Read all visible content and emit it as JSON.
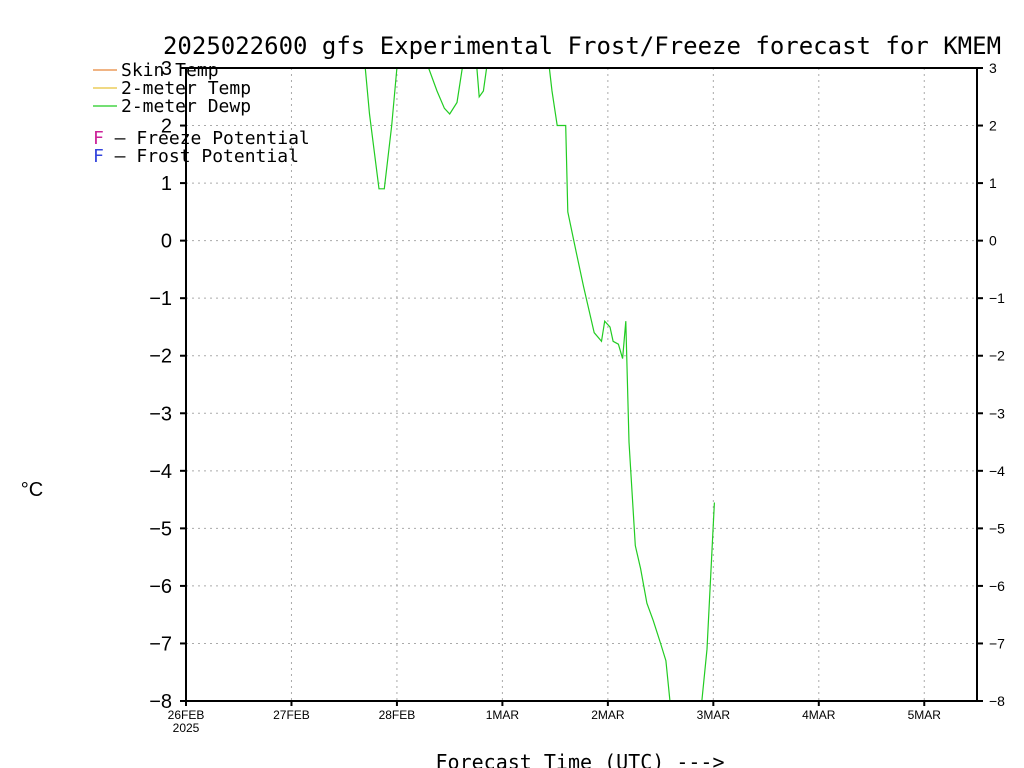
{
  "chart_data": {
    "type": "line",
    "title": "2025022600 gfs Experimental Frost/Freeze forecast for KMEM",
    "xlabel": "Forecast Time (UTC) --->",
    "ylabel": "°C",
    "ylim": [
      -8,
      3
    ],
    "xlim": [
      0,
      7.5
    ],
    "yticks": [
      3,
      2,
      1,
      0,
      -1,
      -2,
      -3,
      -4,
      -5,
      -6,
      -7,
      -8
    ],
    "yticks_right": [
      "3",
      "2",
      "1",
      "0",
      "−1",
      "−2",
      "−3",
      "−4",
      "−5",
      "−6",
      "−7",
      "−8"
    ],
    "yticks_left": [
      "3",
      "2",
      "1",
      "0",
      "−1",
      "−2",
      "−3",
      "−4",
      "−5",
      "−6",
      "−7",
      "−8"
    ],
    "xticks": [
      {
        "x": 0,
        "label": "26FEB",
        "sub": "2025"
      },
      {
        "x": 1,
        "label": "27FEB",
        "sub": ""
      },
      {
        "x": 2,
        "label": "28FEB",
        "sub": ""
      },
      {
        "x": 3,
        "label": "1MAR",
        "sub": ""
      },
      {
        "x": 4,
        "label": "2MAR",
        "sub": ""
      },
      {
        "x": 5,
        "label": "3MAR",
        "sub": ""
      },
      {
        "x": 6,
        "label": "4MAR",
        "sub": ""
      },
      {
        "x": 7,
        "label": "5MAR",
        "sub": ""
      }
    ],
    "grid": true,
    "legend": "top-left",
    "series": [
      {
        "name": "Skin Temp",
        "color": "#e8873a",
        "values": []
      },
      {
        "name": "2-meter Temp",
        "color": "#e8c23a",
        "values": []
      },
      {
        "name": "2-meter Dewp",
        "color": "#22cc22",
        "segments": [
          [
            [
              1.69,
              3.2
            ],
            [
              1.74,
              2.2
            ],
            [
              1.83,
              0.9
            ],
            [
              1.88,
              0.9
            ],
            [
              1.95,
              2.0
            ],
            [
              2.0,
              3.0
            ],
            [
              2.07,
              3.3
            ]
          ],
          [
            [
              2.2,
              3.2
            ],
            [
              2.3,
              3.0
            ],
            [
              2.38,
              2.6
            ],
            [
              2.45,
              2.3
            ],
            [
              2.5,
              2.2
            ],
            [
              2.57,
              2.4
            ],
            [
              2.62,
              3.0
            ],
            [
              2.66,
              3.4
            ]
          ],
          [
            [
              2.74,
              3.4
            ],
            [
              2.78,
              2.5
            ],
            [
              2.82,
              2.6
            ],
            [
              2.85,
              3.0
            ],
            [
              2.87,
              3.4
            ]
          ],
          [
            [
              3.42,
              3.4
            ],
            [
              3.47,
              2.6
            ],
            [
              3.52,
              2.0
            ],
            [
              3.6,
              2.0
            ],
            [
              3.62,
              0.5
            ],
            [
              3.7,
              -0.2
            ],
            [
              3.77,
              -0.8
            ],
            [
              3.82,
              -1.2
            ],
            [
              3.87,
              -1.6
            ],
            [
              3.94,
              -1.75
            ],
            [
              3.97,
              -1.4
            ],
            [
              4.02,
              -1.5
            ],
            [
              4.05,
              -1.75
            ],
            [
              4.1,
              -1.8
            ],
            [
              4.14,
              -2.05
            ],
            [
              4.17,
              -1.4
            ],
            [
              4.2,
              -3.5
            ],
            [
              4.26,
              -5.3
            ],
            [
              4.31,
              -5.7
            ],
            [
              4.37,
              -6.3
            ],
            [
              4.43,
              -6.6
            ],
            [
              4.5,
              -7.0
            ],
            [
              4.55,
              -7.3
            ],
            [
              4.6,
              -8.2
            ]
          ],
          [
            [
              4.88,
              -8.2
            ],
            [
              4.94,
              -7.1
            ],
            [
              5.01,
              -4.55
            ]
          ]
        ]
      }
    ],
    "annotations": [
      {
        "letter": "F",
        "text": " – Freeze Potential",
        "color": "#cc2299"
      },
      {
        "letter": "F",
        "text": " – Frost Potential",
        "color": "#3344dd"
      }
    ]
  }
}
